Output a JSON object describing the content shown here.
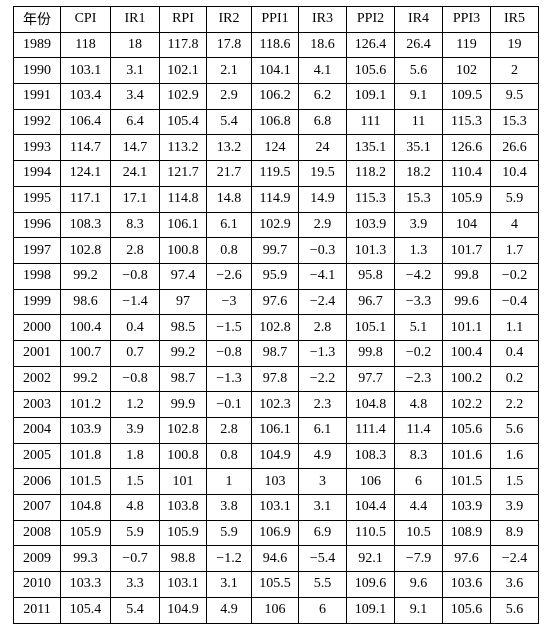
{
  "table": {
    "header": [
      "年份",
      "CPI",
      "IR1",
      "RPI",
      "IR2",
      "PPI1",
      "IR3",
      "PPI2",
      "IR4",
      "PPI3",
      "IR5"
    ],
    "rows": [
      [
        "1989",
        "118",
        "18",
        "117.8",
        "17.8",
        "118.6",
        "18.6",
        "126.4",
        "26.4",
        "119",
        "19"
      ],
      [
        "1990",
        "103.1",
        "3.1",
        "102.1",
        "2.1",
        "104.1",
        "4.1",
        "105.6",
        "5.6",
        "102",
        "2"
      ],
      [
        "1991",
        "103.4",
        "3.4",
        "102.9",
        "2.9",
        "106.2",
        "6.2",
        "109.1",
        "9.1",
        "109.5",
        "9.5"
      ],
      [
        "1992",
        "106.4",
        "6.4",
        "105.4",
        "5.4",
        "106.8",
        "6.8",
        "111",
        "11",
        "115.3",
        "15.3"
      ],
      [
        "1993",
        "114.7",
        "14.7",
        "113.2",
        "13.2",
        "124",
        "24",
        "135.1",
        "35.1",
        "126.6",
        "26.6"
      ],
      [
        "1994",
        "124.1",
        "24.1",
        "121.7",
        "21.7",
        "119.5",
        "19.5",
        "118.2",
        "18.2",
        "110.4",
        "10.4"
      ],
      [
        "1995",
        "117.1",
        "17.1",
        "114.8",
        "14.8",
        "114.9",
        "14.9",
        "115.3",
        "15.3",
        "105.9",
        "5.9"
      ],
      [
        "1996",
        "108.3",
        "8.3",
        "106.1",
        "6.1",
        "102.9",
        "2.9",
        "103.9",
        "3.9",
        "104",
        "4"
      ],
      [
        "1997",
        "102.8",
        "2.8",
        "100.8",
        "0.8",
        "99.7",
        "−0.3",
        "101.3",
        "1.3",
        "101.7",
        "1.7"
      ],
      [
        "1998",
        "99.2",
        "−0.8",
        "97.4",
        "−2.6",
        "95.9",
        "−4.1",
        "95.8",
        "−4.2",
        "99.8",
        "−0.2"
      ],
      [
        "1999",
        "98.6",
        "−1.4",
        "97",
        "−3",
        "97.6",
        "−2.4",
        "96.7",
        "−3.3",
        "99.6",
        "−0.4"
      ],
      [
        "2000",
        "100.4",
        "0.4",
        "98.5",
        "−1.5",
        "102.8",
        "2.8",
        "105.1",
        "5.1",
        "101.1",
        "1.1"
      ],
      [
        "2001",
        "100.7",
        "0.7",
        "99.2",
        "−0.8",
        "98.7",
        "−1.3",
        "99.8",
        "−0.2",
        "100.4",
        "0.4"
      ],
      [
        "2002",
        "99.2",
        "−0.8",
        "98.7",
        "−1.3",
        "97.8",
        "−2.2",
        "97.7",
        "−2.3",
        "100.2",
        "0.2"
      ],
      [
        "2003",
        "101.2",
        "1.2",
        "99.9",
        "−0.1",
        "102.3",
        "2.3",
        "104.8",
        "4.8",
        "102.2",
        "2.2"
      ],
      [
        "2004",
        "103.9",
        "3.9",
        "102.8",
        "2.8",
        "106.1",
        "6.1",
        "111.4",
        "11.4",
        "105.6",
        "5.6"
      ],
      [
        "2005",
        "101.8",
        "1.8",
        "100.8",
        "0.8",
        "104.9",
        "4.9",
        "108.3",
        "8.3",
        "101.6",
        "1.6"
      ],
      [
        "2006",
        "101.5",
        "1.5",
        "101",
        "1",
        "103",
        "3",
        "106",
        "6",
        "101.5",
        "1.5"
      ],
      [
        "2007",
        "104.8",
        "4.8",
        "103.8",
        "3.8",
        "103.1",
        "3.1",
        "104.4",
        "4.4",
        "103.9",
        "3.9"
      ],
      [
        "2008",
        "105.9",
        "5.9",
        "105.9",
        "5.9",
        "106.9",
        "6.9",
        "110.5",
        "10.5",
        "108.9",
        "8.9"
      ],
      [
        "2009",
        "99.3",
        "−0.7",
        "98.8",
        "−1.2",
        "94.6",
        "−5.4",
        "92.1",
        "−7.9",
        "97.6",
        "−2.4"
      ],
      [
        "2010",
        "103.3",
        "3.3",
        "103.1",
        "3.1",
        "105.5",
        "5.5",
        "109.6",
        "9.6",
        "103.6",
        "3.6"
      ],
      [
        "2011",
        "105.4",
        "5.4",
        "104.9",
        "4.9",
        "106",
        "6",
        "109.1",
        "9.1",
        "105.6",
        "5.6"
      ]
    ]
  }
}
